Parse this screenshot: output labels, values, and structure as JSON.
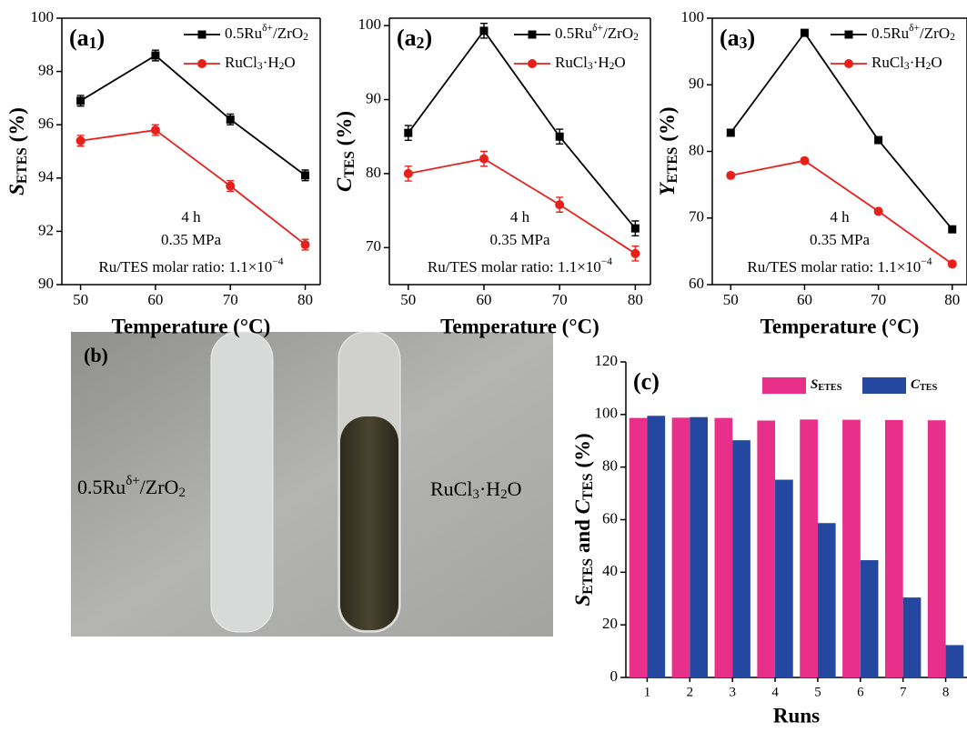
{
  "chart_data": [
    {
      "type": "line",
      "panel": [
        {
          "text": "(a"
        },
        {
          "text": "1",
          "style": "sub"
        },
        {
          "text": ")"
        }
      ],
      "x_label": "Temperature (°C)",
      "y_label": [
        {
          "text": "S",
          "style": "i"
        },
        {
          "text": "ETES",
          "style": "sub"
        },
        {
          "text": " (%)"
        }
      ],
      "x": [
        50,
        60,
        70,
        80
      ],
      "xlim": [
        47.5,
        82
      ],
      "xticks": [
        50,
        60,
        70,
        80
      ],
      "ylim": [
        90,
        100
      ],
      "yticks": [
        90,
        92,
        94,
        96,
        98,
        100
      ],
      "annotations": [
        [
          {
            "text": "4 h"
          }
        ],
        [
          {
            "text": "0.35 MPa"
          }
        ],
        [
          {
            "text": "Ru/TES molar ratio: 1.1×10"
          },
          {
            "text": "−4",
            "style": "sup"
          }
        ]
      ],
      "series": [
        {
          "name": [
            {
              "text": "0.5Ru"
            },
            {
              "text": "δ+",
              "style": "sup"
            },
            {
              "text": "/ZrO"
            },
            {
              "text": "2",
              "style": "sub"
            }
          ],
          "color": "#000000",
          "marker": "square",
          "values": [
            96.9,
            98.6,
            96.2,
            94.1
          ],
          "errors": [
            0.2,
            0.2,
            0.2,
            0.2
          ]
        },
        {
          "name": [
            {
              "text": "RuCl"
            },
            {
              "text": "3",
              "style": "sub"
            },
            {
              "text": "·H"
            },
            {
              "text": "2",
              "style": "sub"
            },
            {
              "text": "O"
            }
          ],
          "color": "#e8201c",
          "marker": "circle",
          "values": [
            95.4,
            95.8,
            93.7,
            91.5
          ],
          "errors": [
            0.2,
            0.2,
            0.2,
            0.2
          ]
        }
      ]
    },
    {
      "type": "line",
      "panel": [
        {
          "text": "(a"
        },
        {
          "text": "2",
          "style": "sub"
        },
        {
          "text": ")"
        }
      ],
      "x_label": "Temperature (°C)",
      "y_label": [
        {
          "text": "C",
          "style": "i"
        },
        {
          "text": "TES",
          "style": "sub"
        },
        {
          "text": " (%)"
        }
      ],
      "x": [
        50,
        60,
        70,
        80
      ],
      "xlim": [
        47.5,
        82
      ],
      "xticks": [
        50,
        60,
        70,
        80
      ],
      "ylim": [
        65,
        101
      ],
      "yticks": [
        70,
        80,
        90,
        100
      ],
      "annotations": [
        [
          {
            "text": "4 h"
          }
        ],
        [
          {
            "text": "0.35 MPa"
          }
        ],
        [
          {
            "text": "Ru/TES molar ratio: 1.1×10"
          },
          {
            "text": "−4",
            "style": "sup"
          }
        ]
      ],
      "series": [
        {
          "name": [
            {
              "text": "0.5Ru"
            },
            {
              "text": "δ+",
              "style": "sup"
            },
            {
              "text": "/ZrO"
            },
            {
              "text": "2",
              "style": "sub"
            }
          ],
          "color": "#000000",
          "marker": "square",
          "values": [
            85.5,
            99.3,
            85,
            72.6
          ],
          "errors": [
            1,
            1,
            1,
            1
          ]
        },
        {
          "name": [
            {
              "text": "RuCl"
            },
            {
              "text": "3",
              "style": "sub"
            },
            {
              "text": "·H"
            },
            {
              "text": "2",
              "style": "sub"
            },
            {
              "text": "O"
            }
          ],
          "color": "#e8201c",
          "marker": "circle",
          "values": [
            80,
            82,
            75.8,
            69.2
          ],
          "errors": [
            1,
            1,
            1,
            1
          ]
        }
      ]
    },
    {
      "type": "line",
      "panel": [
        {
          "text": "(a"
        },
        {
          "text": "3",
          "style": "sub"
        },
        {
          "text": ")"
        }
      ],
      "x_label": "Temperature (°C)",
      "y_label": [
        {
          "text": "Y",
          "style": "i"
        },
        {
          "text": "ETES",
          "style": "sub"
        },
        {
          "text": " (%)"
        }
      ],
      "x": [
        50,
        60,
        70,
        80
      ],
      "xlim": [
        47.5,
        82
      ],
      "xticks": [
        50,
        60,
        70,
        80
      ],
      "ylim": [
        60,
        100
      ],
      "yticks": [
        60,
        70,
        80,
        90,
        100
      ],
      "annotations": [
        [
          {
            "text": "4 h"
          }
        ],
        [
          {
            "text": "0.35 MPa"
          }
        ],
        [
          {
            "text": "Ru/TES molar ratio: 1.1×10"
          },
          {
            "text": "−4",
            "style": "sup"
          }
        ]
      ],
      "series": [
        {
          "name": [
            {
              "text": "0.5Ru"
            },
            {
              "text": "δ+",
              "style": "sup"
            },
            {
              "text": "/ZrO"
            },
            {
              "text": "2",
              "style": "sub"
            }
          ],
          "color": "#000000",
          "marker": "square",
          "values": [
            82.8,
            97.8,
            81.7,
            68.3
          ],
          "errors": [
            0.4,
            0.4,
            0.4,
            0.4
          ]
        },
        {
          "name": [
            {
              "text": "RuCl"
            },
            {
              "text": "3",
              "style": "sub"
            },
            {
              "text": "·H"
            },
            {
              "text": "2",
              "style": "sub"
            },
            {
              "text": "O"
            }
          ],
          "color": "#e8201c",
          "marker": "circle",
          "values": [
            76.4,
            78.6,
            71,
            63.1
          ],
          "errors": [
            0.4,
            0.4,
            0.4,
            0.4
          ]
        }
      ]
    },
    {
      "type": "bar",
      "panel": [
        {
          "text": "(c)"
        }
      ],
      "x_label": "Runs",
      "y_label": [
        {
          "text": "S",
          "style": "i"
        },
        {
          "text": "ETES",
          "style": "sub"
        },
        {
          "text": " and "
        },
        {
          "text": "C",
          "style": "i"
        },
        {
          "text": "TES",
          "style": "sub"
        },
        {
          "text": " (%)"
        }
      ],
      "categories": [
        "1",
        "2",
        "3",
        "4",
        "5",
        "6",
        "7",
        "8"
      ],
      "ylim": [
        0,
        120
      ],
      "yticks": [
        0,
        20,
        40,
        60,
        80,
        100,
        120
      ],
      "series": [
        {
          "name": [
            {
              "text": "S",
              "style": "i"
            },
            {
              "text": "ETES",
              "style": "sub"
            }
          ],
          "color": "#e8308a",
          "values": [
            98.7,
            98.8,
            98.7,
            97.7,
            98.1,
            98.0,
            97.9,
            97.8
          ]
        },
        {
          "name": [
            {
              "text": "C",
              "style": "i"
            },
            {
              "text": "TES",
              "style": "sub"
            }
          ],
          "color": "#2447a0",
          "values": [
            99.5,
            99.0,
            90.2,
            75.2,
            58.7,
            44.6,
            30.4,
            12.3
          ]
        }
      ]
    }
  ],
  "photo": {
    "label": "(b)",
    "left_caption": [
      {
        "text": "0.5Ru"
      },
      {
        "text": "δ+",
        "style": "sup"
      },
      {
        "text": "/ZrO"
      },
      {
        "text": "2",
        "style": "sub"
      }
    ],
    "right_caption": [
      {
        "text": "RuCl"
      },
      {
        "text": "3",
        "style": "sub"
      },
      {
        "text": "·H"
      },
      {
        "text": "2",
        "style": "sub"
      },
      {
        "text": "O"
      }
    ]
  }
}
